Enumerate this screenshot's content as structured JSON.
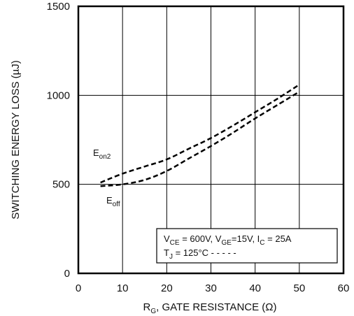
{
  "chart_data": {
    "type": "line",
    "xlabel": {
      "main": "R",
      "sub": "G",
      "rest": ", GATE RESISTANCE (Ω)"
    },
    "ylabel": "SWITCHING ENERGY LOSS (µJ)",
    "xlim": [
      0,
      60
    ],
    "ylim": [
      0,
      1500
    ],
    "x_ticks": [
      "0",
      "10",
      "20",
      "30",
      "40",
      "50",
      "60"
    ],
    "y_ticks": [
      "0",
      "500",
      "1000",
      "1500"
    ],
    "grid": true,
    "series": [
      {
        "name": "Eon2",
        "label_main": "E",
        "label_sub": "on2",
        "line_style": "dashed",
        "x": [
          5,
          10,
          15,
          20,
          25,
          30,
          35,
          40,
          45,
          50
        ],
        "y": [
          510,
          560,
          600,
          640,
          700,
          760,
          830,
          905,
          980,
          1060
        ]
      },
      {
        "name": "Eoff",
        "label_main": "E",
        "label_sub": "off",
        "line_style": "dashed",
        "x": [
          5,
          10,
          15,
          20,
          25,
          30,
          35,
          40,
          45,
          50
        ],
        "y": [
          490,
          500,
          525,
          575,
          645,
          715,
          790,
          870,
          945,
          1020
        ]
      }
    ],
    "conditions": {
      "line1": {
        "p1": "V",
        "s1": "CE",
        "p2": " = 600V, V",
        "s2": "GE",
        "p3": "=15V, I",
        "s3": "C",
        "p4": " = 25A"
      },
      "line2": {
        "p1": "T",
        "s1": "J",
        "p2": " = 125°C - - - - -"
      }
    }
  }
}
